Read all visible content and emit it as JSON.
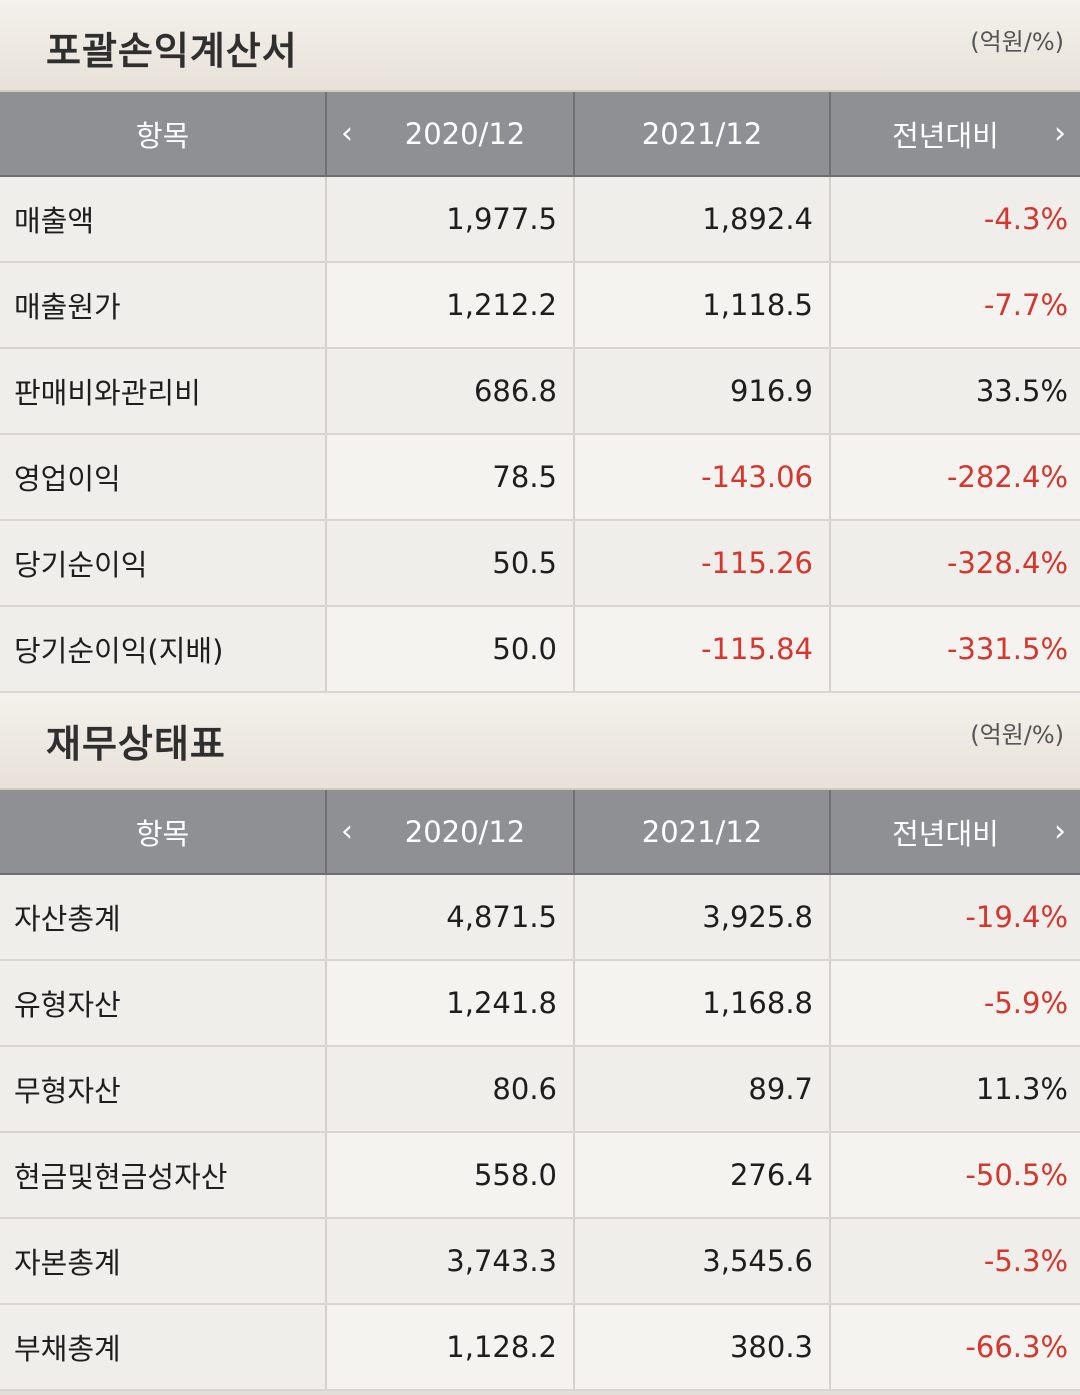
{
  "income_statement": {
    "title": "포괄손익계산서",
    "unit": "(억원/%)",
    "headers": {
      "item": "항목",
      "col1": "2020/12",
      "col2": "2021/12",
      "col3": "전년대비",
      "prev_icon": "chevron-left-icon",
      "next_icon": "chevron-right-icon"
    },
    "rows": [
      {
        "label": "매출액",
        "v2020": "1,977.5",
        "v2021": "1,892.4",
        "yoy": "-4.3%"
      },
      {
        "label": "매출원가",
        "v2020": "1,212.2",
        "v2021": "1,118.5",
        "yoy": "-7.7%"
      },
      {
        "label": "판매비와관리비",
        "v2020": "686.8",
        "v2021": "916.9",
        "yoy": "33.5%"
      },
      {
        "label": "영업이익",
        "v2020": "78.5",
        "v2021": "-143.06",
        "yoy": "-282.4%"
      },
      {
        "label": "당기순이익",
        "v2020": "50.5",
        "v2021": "-115.26",
        "yoy": "-328.4%"
      },
      {
        "label": "당기순이익(지배)",
        "v2020": "50.0",
        "v2021": "-115.84",
        "yoy": "-331.5%"
      }
    ]
  },
  "balance_sheet": {
    "title": "재무상태표",
    "unit": "(억원/%)",
    "headers": {
      "item": "항목",
      "col1": "2020/12",
      "col2": "2021/12",
      "col3": "전년대비",
      "prev_icon": "chevron-left-icon",
      "next_icon": "chevron-right-icon"
    },
    "rows": [
      {
        "label": "자산총계",
        "v2020": "4,871.5",
        "v2021": "3,925.8",
        "yoy": "-19.4%"
      },
      {
        "label": "유형자산",
        "v2020": "1,241.8",
        "v2021": "1,168.8",
        "yoy": "-5.9%"
      },
      {
        "label": "무형자산",
        "v2020": "80.6",
        "v2021": "89.7",
        "yoy": "11.3%"
      },
      {
        "label": "현금및현금성자산",
        "v2020": "558.0",
        "v2021": "276.4",
        "yoy": "-50.5%"
      },
      {
        "label": "자본총계",
        "v2020": "3,743.3",
        "v2021": "3,545.6",
        "yoy": "-5.3%"
      },
      {
        "label": "부채총계",
        "v2020": "1,128.2",
        "v2021": "380.3",
        "yoy": "-66.3%"
      }
    ]
  },
  "colors": {
    "negative": "#d5362d",
    "header_bg": "#8e9093"
  }
}
